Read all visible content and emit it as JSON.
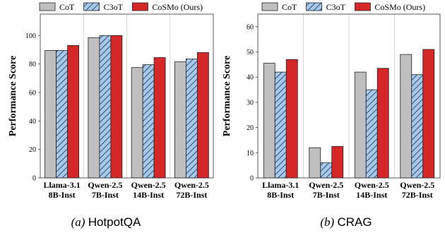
{
  "colors": {
    "cot": "#bfbfbf",
    "c3ot": "#a8c8e8",
    "cosmo": "#d62728",
    "hatch": "#2b4c7e"
  },
  "chart_data": [
    {
      "type": "bar",
      "caption_letter": "(a)",
      "caption_name": "HotpotQA",
      "ylabel": "Performance Score",
      "ylim": [
        0,
        115
      ],
      "yticks": [
        0,
        20,
        40,
        60,
        80,
        100
      ],
      "grid": "vertical",
      "legend": "top",
      "categories": [
        [
          "Llama-3.1",
          "8B-Inst"
        ],
        [
          "Qwen-2.5",
          "7B-Inst"
        ],
        [
          "Qwen-2.5",
          "14B-Inst"
        ],
        [
          "Qwen-2.5",
          "72B-Inst"
        ]
      ],
      "series": [
        {
          "name": "CoT",
          "style": "cot",
          "values": [
            89.5,
            98.5,
            77.5,
            81.5
          ]
        },
        {
          "name": "C3oT",
          "style": "c3ot",
          "values": [
            89.5,
            100,
            79.5,
            83.5
          ]
        },
        {
          "name": "CoSMo (Ours)",
          "style": "cosmo",
          "values": [
            93,
            100,
            84.5,
            88
          ]
        }
      ]
    },
    {
      "type": "bar",
      "caption_letter": "(b)",
      "caption_name": "CRAG",
      "ylabel": "Performance Score",
      "ylim": [
        0,
        65
      ],
      "yticks": [
        0,
        10,
        20,
        30,
        40,
        50,
        60
      ],
      "grid": "vertical",
      "legend": "top",
      "categories": [
        [
          "Llama-3.1",
          "8B-Inst"
        ],
        [
          "Qwen-2.5",
          "7B-Inst"
        ],
        [
          "Qwen-2.5",
          "14B-Inst"
        ],
        [
          "Qwen-2.5",
          "72B-Inst"
        ]
      ],
      "series": [
        {
          "name": "CoT",
          "style": "cot",
          "values": [
            45.5,
            12,
            42,
            49
          ]
        },
        {
          "name": "C3oT",
          "style": "c3ot",
          "values": [
            42,
            6,
            35,
            41
          ]
        },
        {
          "name": "CoSMo (Ours)",
          "style": "cosmo",
          "values": [
            47,
            12.5,
            43.5,
            51
          ]
        }
      ]
    }
  ]
}
